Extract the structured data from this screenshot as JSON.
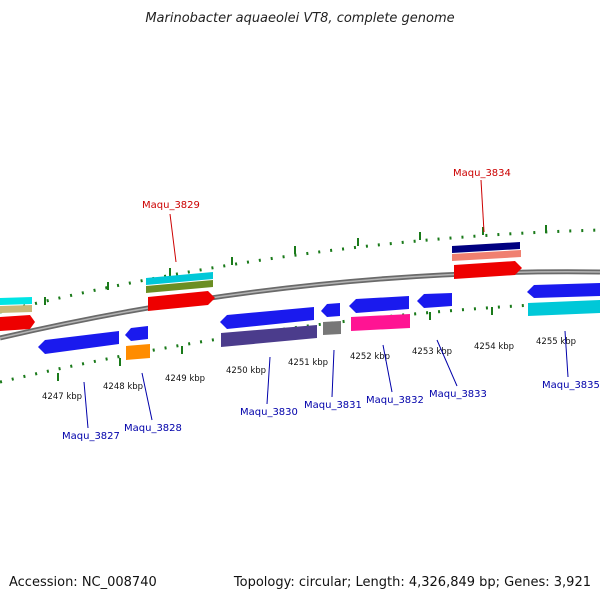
{
  "title": "Marinobacter aquaeolei VT8, complete genome",
  "accession": "Accession: NC_008740",
  "topology": "Topology: circular; Length: 4,326,849 bp; Genes: 3,921",
  "colors": {
    "backbone": "#7f7f7f",
    "ticks": "#1a7a1a",
    "label_forward": "#cc0000",
    "label_reverse": "#0000aa"
  },
  "ticks": [
    "4247 kbp",
    "4248 kbp",
    "4249 kbp",
    "4250 kbp",
    "4251 kbp",
    "4252 kbp",
    "4253 kbp",
    "4254 kbp",
    "4255 kbp"
  ],
  "gene_labels": [
    {
      "name": "Maqu_3827",
      "strand": "reverse"
    },
    {
      "name": "Maqu_3828",
      "strand": "reverse"
    },
    {
      "name": "Maqu_3829",
      "strand": "forward"
    },
    {
      "name": "Maqu_3830",
      "strand": "reverse"
    },
    {
      "name": "Maqu_3831",
      "strand": "reverse"
    },
    {
      "name": "Maqu_3832",
      "strand": "reverse"
    },
    {
      "name": "Maqu_3833",
      "strand": "reverse"
    },
    {
      "name": "Maqu_3834",
      "strand": "forward"
    },
    {
      "name": "Maqu_3835",
      "strand": "reverse"
    }
  ]
}
